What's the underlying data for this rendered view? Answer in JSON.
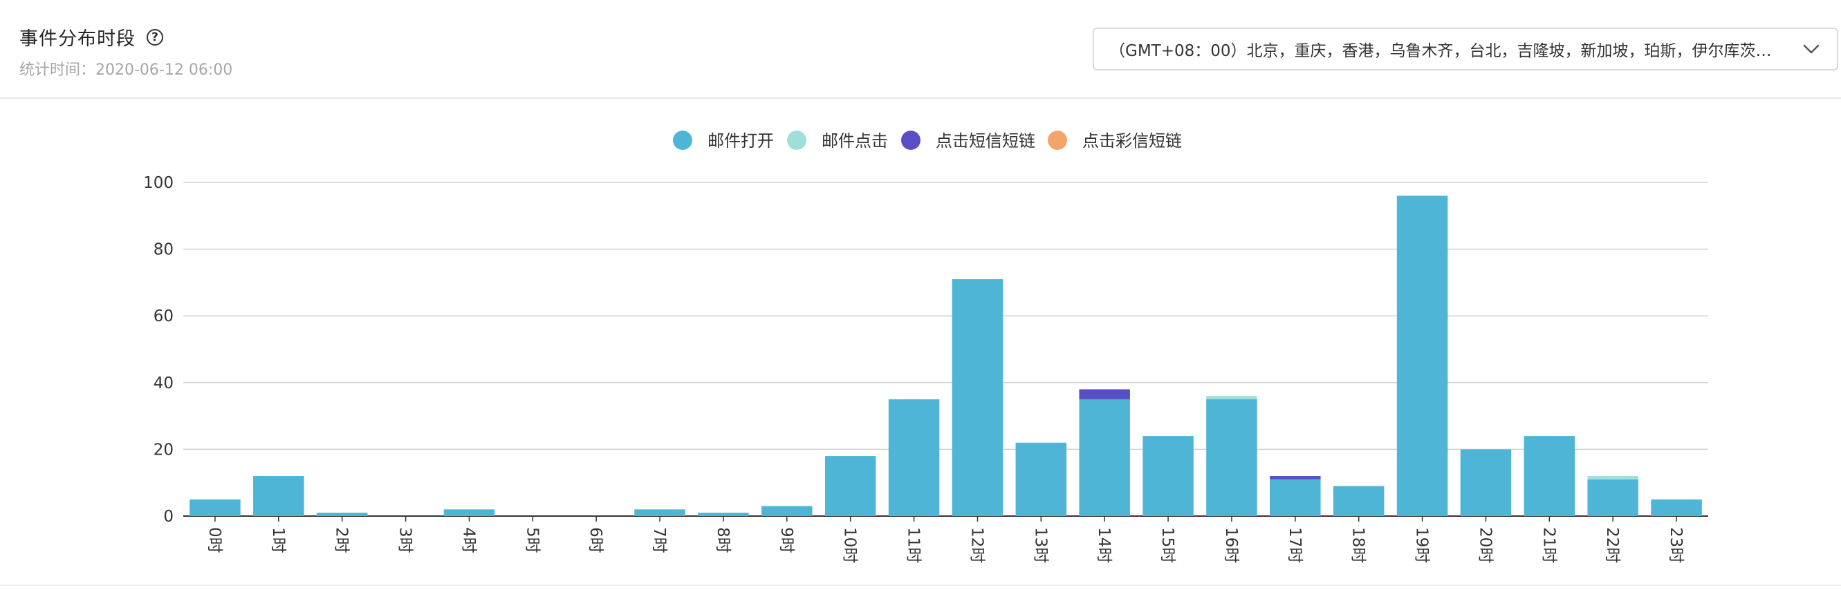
{
  "header": {
    "title": "事件分布时段",
    "subtitle": "统计时间：2020-06-12 06:00",
    "timezone": {
      "value": "（GMT+08：00）北京，重庆，香港，乌鲁木齐，台北，吉隆坡，新加坡，珀斯，伊尔库茨…",
      "icon": "chevron-down-icon"
    },
    "help_icon": "question-circle-icon"
  },
  "chart_data": {
    "type": "bar",
    "stacked": true,
    "legend_position": "top-center",
    "grid": true,
    "ylim": [
      0,
      100
    ],
    "yticks": [
      0,
      20,
      40,
      60,
      80,
      100
    ],
    "categories": [
      "0时",
      "1时",
      "2时",
      "3时",
      "4时",
      "5时",
      "6时",
      "7时",
      "8时",
      "9时",
      "10时",
      "11时",
      "12时",
      "13时",
      "14时",
      "15时",
      "16时",
      "17时",
      "18时",
      "19时",
      "20时",
      "21时",
      "22时",
      "23时"
    ],
    "series": [
      {
        "name": "邮件打开",
        "color": "#4fb5d6",
        "values": [
          5,
          12,
          1,
          0,
          2,
          0,
          0,
          2,
          1,
          3,
          18,
          35,
          71,
          22,
          35,
          24,
          35,
          11,
          9,
          96,
          20,
          24,
          11,
          5
        ]
      },
      {
        "name": "邮件点击",
        "color": "#9ee0d8",
        "values": [
          0,
          0,
          0,
          0,
          0,
          0,
          0,
          0,
          0,
          0,
          0,
          0,
          0,
          0,
          0,
          0,
          1,
          0,
          0,
          0,
          0,
          0,
          1,
          0
        ]
      },
      {
        "name": "点击短信短链",
        "color": "#5a4ec4",
        "values": [
          0,
          0,
          0,
          0,
          0,
          0,
          0,
          0,
          0,
          0,
          0,
          0,
          0,
          0,
          3,
          0,
          0,
          1,
          0,
          0,
          0,
          0,
          0,
          0
        ]
      },
      {
        "name": "点击彩信短链",
        "color": "#f2a46b",
        "values": [
          0,
          0,
          0,
          0,
          0,
          0,
          0,
          0,
          0,
          0,
          0,
          0,
          0,
          0,
          0,
          0,
          0,
          0,
          0,
          0,
          0,
          0,
          0,
          0
        ]
      }
    ]
  }
}
